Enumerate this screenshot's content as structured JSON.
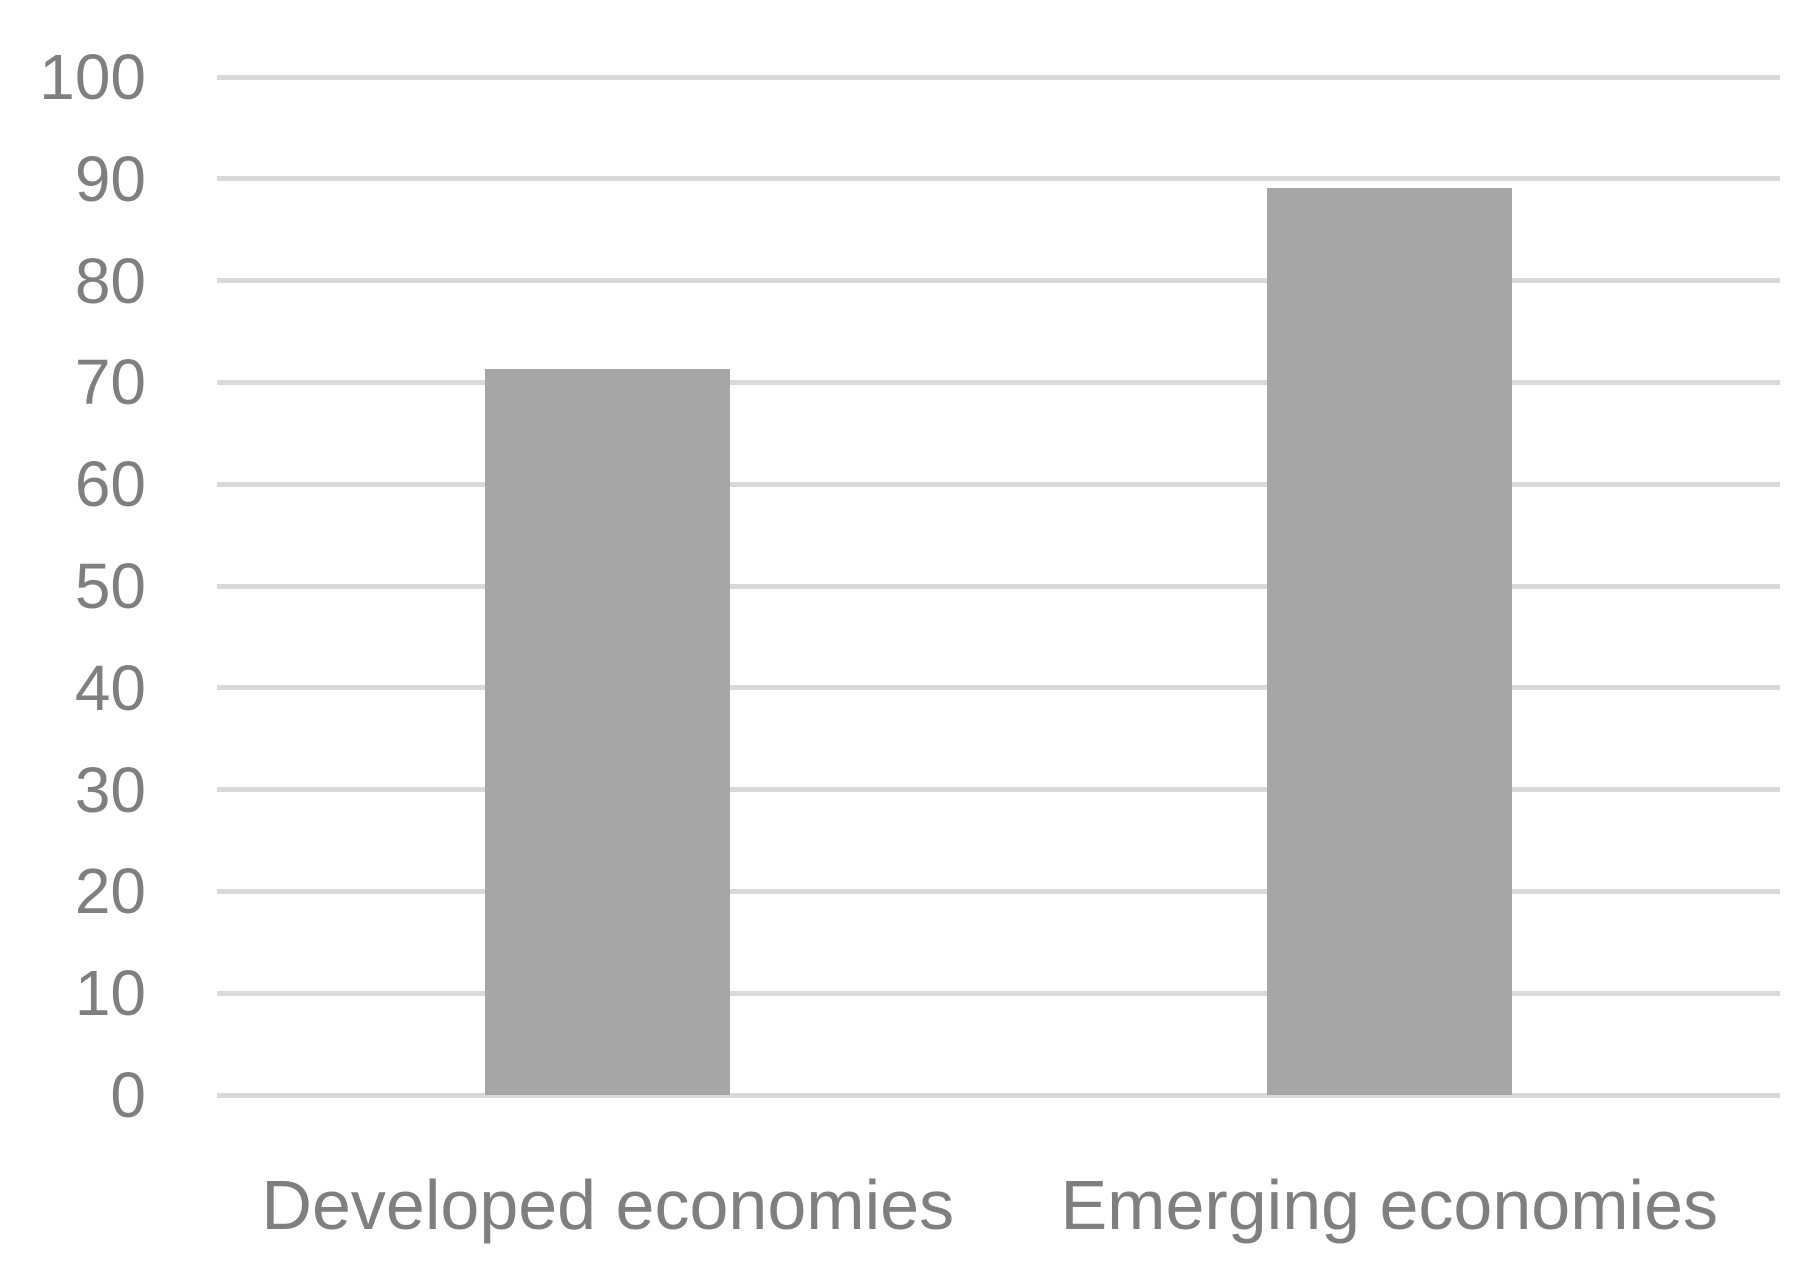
{
  "chart_data": {
    "type": "bar",
    "categories": [
      "Developed economies",
      "Emerging economies"
    ],
    "values": [
      71.3,
      89.1
    ],
    "title": "",
    "xlabel": "",
    "ylabel": "",
    "ylim": [
      0,
      100
    ],
    "yticks": [
      0,
      10,
      20,
      30,
      40,
      50,
      60,
      70,
      80,
      90,
      100
    ],
    "grid": true,
    "legend": "none",
    "bar_color": "#a6a6a6",
    "gridline_color": "#d9d9d9",
    "label_color": "#7f7f7f"
  }
}
